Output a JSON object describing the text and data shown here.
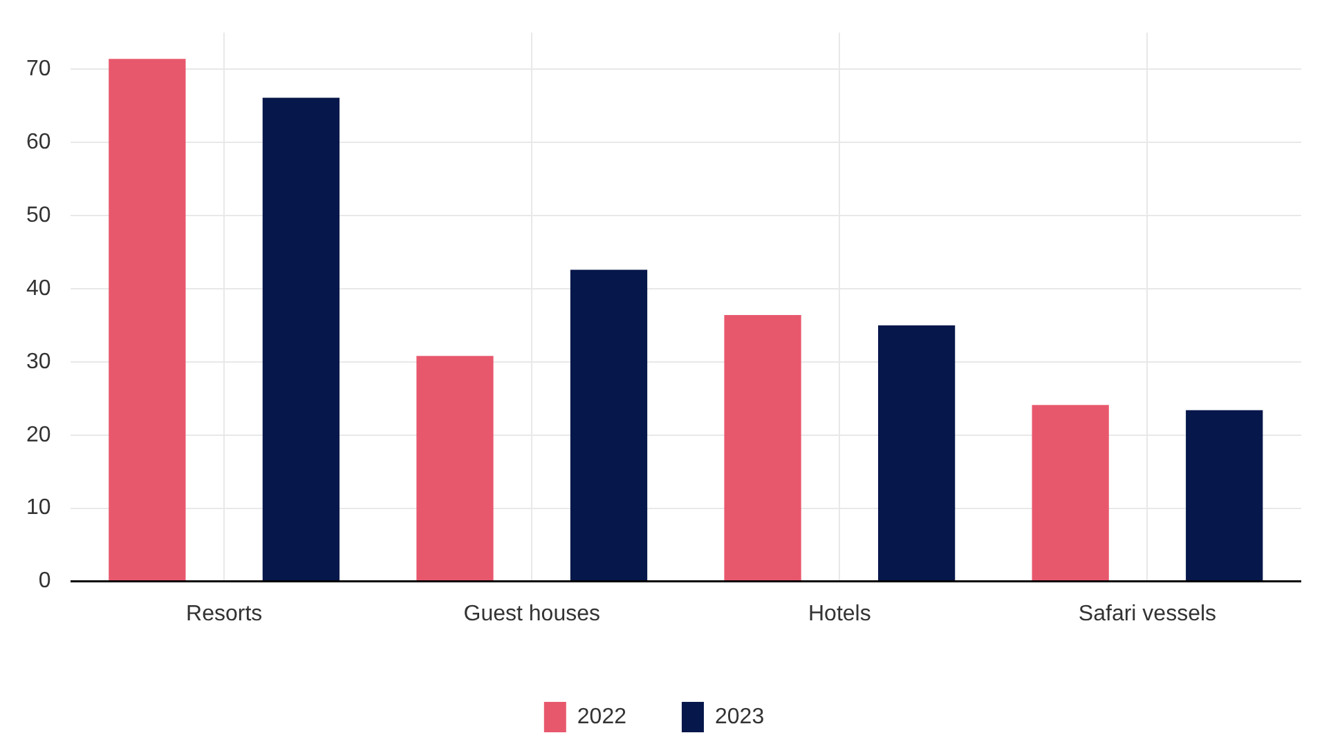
{
  "chart_data": {
    "type": "bar",
    "categories": [
      "Resorts",
      "Guest houses",
      "Hotels",
      "Safari vessels"
    ],
    "series": [
      {
        "name": "2022",
        "color": "#e8586d",
        "values": [
          71.4,
          30.8,
          36.4,
          24.1
        ]
      },
      {
        "name": "2023",
        "color": "#06174b",
        "values": [
          66.1,
          42.6,
          35.0,
          23.4
        ]
      }
    ],
    "ylim": [
      0,
      75
    ],
    "yticks": [
      0,
      10,
      20,
      30,
      40,
      50,
      60,
      70
    ],
    "grid": true,
    "legend": "bottom"
  }
}
